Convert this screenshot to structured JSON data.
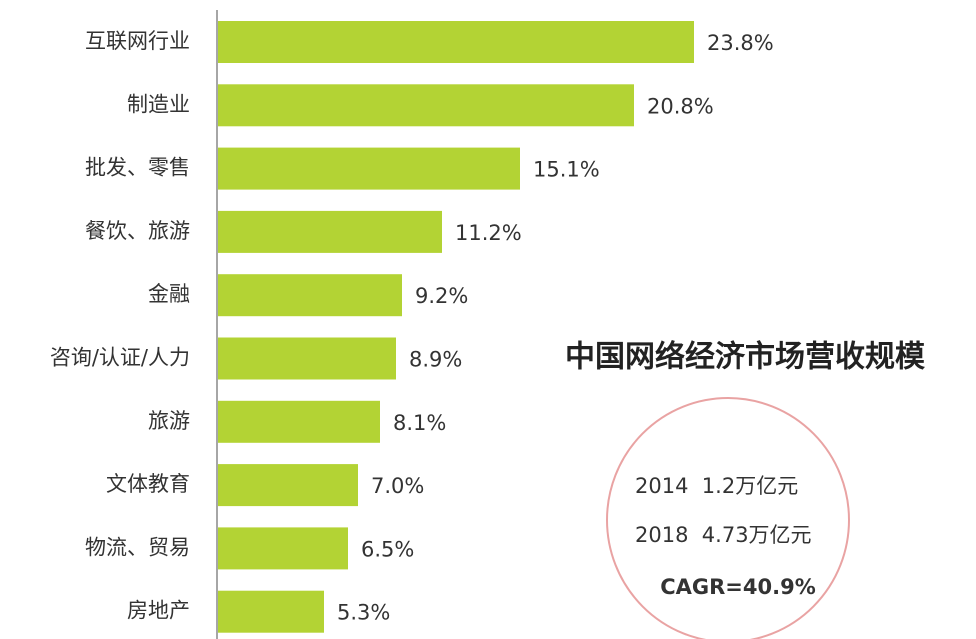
{
  "chart_data": {
    "type": "bar",
    "orientation": "horizontal",
    "categories": [
      "互联网行业",
      "制造业",
      "批发、零售",
      "餐饮、旅游",
      "金融",
      "咨询/认证/人力",
      "旅游",
      "文体教育",
      "物流、贸易",
      "房地产"
    ],
    "values": [
      23.8,
      20.8,
      15.1,
      11.2,
      9.2,
      8.9,
      8.1,
      7.0,
      6.5,
      5.3
    ],
    "value_labels": [
      "23.8%",
      "20.8%",
      "15.1%",
      "11.2%",
      "9.2%",
      "8.9%",
      "8.1%",
      "7.0%",
      "6.5%",
      "5.3%"
    ],
    "color": "#b3d334",
    "xlim": [
      0,
      38
    ],
    "annotations": [
      "中国网络经济市场营收规模",
      "2014  1.2万亿元",
      "2018  4.73万亿元",
      "CAGR=40.9%"
    ]
  }
}
